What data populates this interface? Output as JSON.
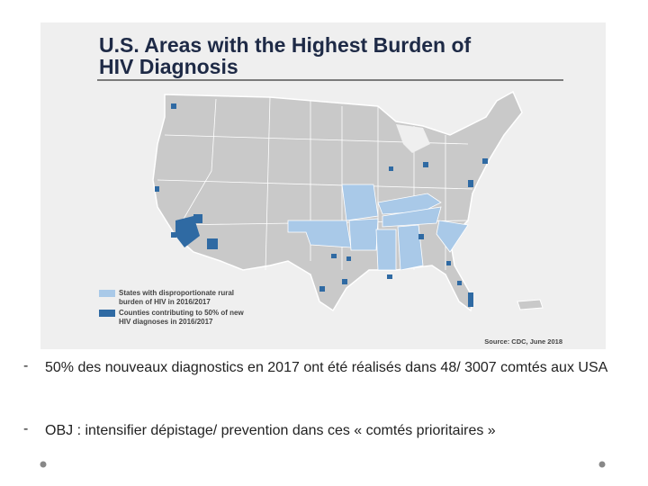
{
  "figure": {
    "title_lines": [
      "U.S. Areas with the Highest Burden of",
      "HIV Diagnosis"
    ],
    "legend": [
      {
        "lines": [
          "States with disproportionate rural",
          "burden of HIV in 2016/2017"
        ]
      },
      {
        "lines": [
          "Counties contributing to 50% of new",
          "HIV diagnoses in 2016/2017"
        ]
      }
    ],
    "source": "Source: CDC, June 2018"
  },
  "bullets": [
    {
      "marker": "-",
      "text": "50% des nouveaux diagnostics en 2017 ont été réalisés dans 48/ 3007 comtés aux USA"
    },
    {
      "marker": "-",
      "text": "OBJ : intensifier dépistage/ prevention dans ces « comtés prioritaires »"
    }
  ]
}
